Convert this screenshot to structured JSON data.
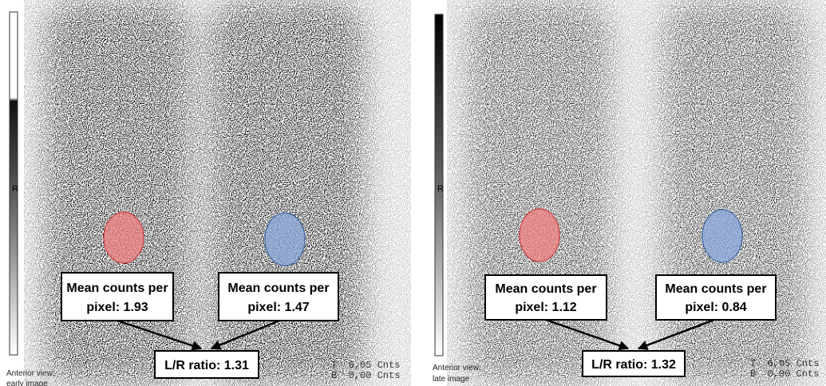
{
  "panels": [
    {
      "scale_label": "R",
      "left_roi": [
        "Mean counts per",
        "pixel: 1.93"
      ],
      "right_roi": [
        "Mean counts per",
        "pixel: 1.47"
      ],
      "ratio": "L/R ratio: 1.31",
      "t_label": "T  6,05 Cnts",
      "b_label": "B  0,00 Cnts",
      "caption": [
        "Anterior view;",
        "early image"
      ]
    },
    {
      "scale_label": "R",
      "left_roi": [
        "Mean counts per",
        "pixel: 1.12"
      ],
      "right_roi": [
        "Mean counts per",
        "pixel: 0.84"
      ],
      "ratio": "L/R ratio: 1.32",
      "t_label": "T  6,05 Cnts",
      "b_label": "B  0,00 Cnts",
      "caption": [
        "Anterior view;",
        "late image"
      ]
    }
  ]
}
